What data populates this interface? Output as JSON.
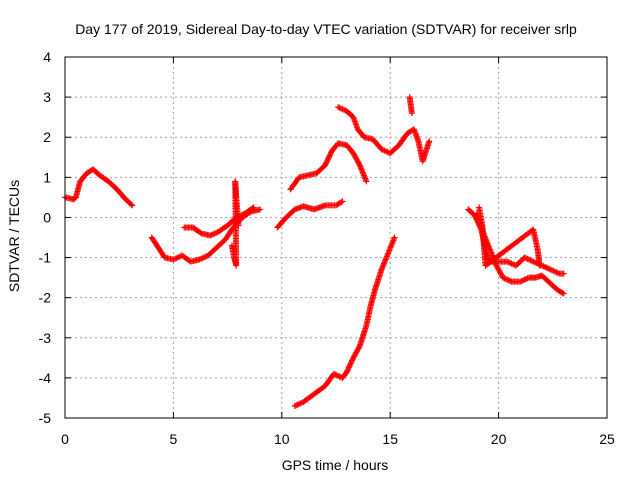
{
  "chart_data": {
    "type": "scatter",
    "title": "Day 177 of 2019, Sidereal Day-to-day VTEC variation (SDTVAR) for receiver srlp",
    "xlabel": "GPS time / hours",
    "ylabel": "SDTVAR / TECUs",
    "xlim": [
      0,
      25
    ],
    "ylim": [
      -5,
      4
    ],
    "x_ticks": [
      0,
      5,
      10,
      15,
      20,
      25
    ],
    "y_ticks": [
      -5,
      -4,
      -3,
      -2,
      -1,
      0,
      1,
      2,
      3,
      4
    ],
    "x_tick_labels": [
      "0",
      "5",
      "10",
      "15",
      "20",
      "25"
    ],
    "y_tick_labels": [
      "-5",
      "-4",
      "-3",
      "-2",
      "-1",
      "0",
      "1",
      "2",
      "3",
      "4"
    ],
    "grid": true,
    "marker": "plus",
    "color": "#ff0000",
    "segments": [
      [
        [
          0.0,
          0.5
        ],
        [
          0.2,
          0.48
        ],
        [
          0.4,
          0.45
        ],
        [
          0.5,
          0.5
        ],
        [
          0.7,
          0.9
        ],
        [
          1.0,
          1.1
        ],
        [
          1.3,
          1.2
        ],
        [
          1.6,
          1.05
        ],
        [
          2.0,
          0.9
        ],
        [
          2.4,
          0.7
        ],
        [
          2.8,
          0.45
        ],
        [
          3.1,
          0.3
        ]
      ],
      [
        [
          4.0,
          -0.5
        ],
        [
          4.3,
          -0.75
        ],
        [
          4.6,
          -1.0
        ],
        [
          5.0,
          -1.05
        ],
        [
          5.4,
          -0.95
        ],
        [
          5.8,
          -1.1
        ],
        [
          6.2,
          -1.05
        ],
        [
          6.6,
          -0.95
        ],
        [
          7.0,
          -0.75
        ],
        [
          7.4,
          -0.55
        ],
        [
          7.7,
          -0.3
        ],
        [
          8.0,
          -0.1
        ],
        [
          8.3,
          0.05
        ],
        [
          8.6,
          0.15
        ],
        [
          9.0,
          0.2
        ]
      ],
      [
        [
          5.5,
          -0.25
        ],
        [
          5.9,
          -0.25
        ],
        [
          6.3,
          -0.4
        ],
        [
          6.7,
          -0.45
        ],
        [
          7.1,
          -0.35
        ],
        [
          7.5,
          -0.2
        ],
        [
          7.9,
          0.0
        ],
        [
          8.3,
          0.1
        ],
        [
          8.7,
          0.25
        ]
      ],
      [
        [
          7.7,
          -0.7
        ],
        [
          7.8,
          -1.0
        ],
        [
          7.9,
          -1.2
        ],
        [
          7.85,
          0.9
        ],
        [
          7.9,
          0.5
        ],
        [
          8.0,
          -0.2
        ]
      ],
      [
        [
          9.8,
          -0.25
        ],
        [
          10.2,
          0.0
        ],
        [
          10.6,
          0.2
        ],
        [
          11.0,
          0.28
        ],
        [
          11.5,
          0.2
        ],
        [
          12.0,
          0.3
        ],
        [
          12.5,
          0.3
        ],
        [
          12.8,
          0.4
        ]
      ],
      [
        [
          10.4,
          0.7
        ],
        [
          10.8,
          1.0
        ],
        [
          11.2,
          1.05
        ],
        [
          11.6,
          1.1
        ],
        [
          12.0,
          1.3
        ],
        [
          12.3,
          1.65
        ],
        [
          12.6,
          1.85
        ],
        [
          13.0,
          1.8
        ],
        [
          13.3,
          1.6
        ],
        [
          13.6,
          1.3
        ],
        [
          13.9,
          0.9
        ]
      ],
      [
        [
          12.6,
          2.75
        ],
        [
          13.0,
          2.65
        ],
        [
          13.3,
          2.5
        ],
        [
          13.5,
          2.2
        ],
        [
          13.8,
          2.0
        ],
        [
          14.2,
          1.95
        ],
        [
          14.6,
          1.7
        ],
        [
          15.0,
          1.6
        ],
        [
          15.4,
          1.8
        ],
        [
          15.8,
          2.1
        ],
        [
          16.1,
          2.2
        ],
        [
          16.3,
          1.9
        ],
        [
          16.5,
          1.4
        ],
        [
          16.8,
          1.9
        ]
      ],
      [
        [
          10.6,
          -4.7
        ],
        [
          11.0,
          -4.6
        ],
        [
          11.5,
          -4.4
        ],
        [
          12.0,
          -4.2
        ],
        [
          12.4,
          -3.9
        ],
        [
          12.8,
          -4.0
        ],
        [
          13.0,
          -3.85
        ],
        [
          13.3,
          -3.5
        ],
        [
          13.6,
          -3.2
        ],
        [
          13.9,
          -2.7
        ],
        [
          14.1,
          -2.2
        ],
        [
          14.3,
          -1.8
        ],
        [
          14.6,
          -1.3
        ],
        [
          14.9,
          -0.9
        ],
        [
          15.2,
          -0.5
        ]
      ],
      [
        [
          15.9,
          3.0
        ],
        [
          16.0,
          2.6
        ]
      ],
      [
        [
          18.6,
          0.2
        ],
        [
          18.9,
          0.05
        ],
        [
          19.2,
          -0.3
        ],
        [
          19.4,
          -0.8
        ],
        [
          19.6,
          -1.1
        ],
        [
          20.0,
          -1.1
        ],
        [
          20.4,
          -1.1
        ],
        [
          20.8,
          -1.2
        ],
        [
          21.2,
          -1.0
        ],
        [
          21.6,
          -1.1
        ],
        [
          22.0,
          -1.2
        ],
        [
          22.4,
          -1.3
        ],
        [
          22.8,
          -1.4
        ],
        [
          23.0,
          -1.4
        ]
      ],
      [
        [
          19.0,
          0.1
        ],
        [
          19.3,
          -0.4
        ],
        [
          19.6,
          -0.8
        ],
        [
          19.9,
          -1.2
        ],
        [
          20.2,
          -1.5
        ],
        [
          20.6,
          -1.6
        ],
        [
          21.0,
          -1.6
        ],
        [
          21.4,
          -1.5
        ],
        [
          21.7,
          -1.5
        ],
        [
          22.0,
          -1.45
        ],
        [
          22.3,
          -1.6
        ],
        [
          22.7,
          -1.8
        ],
        [
          23.0,
          -1.9
        ]
      ],
      [
        [
          19.1,
          0.25
        ],
        [
          19.25,
          -0.2
        ],
        [
          19.4,
          -1.2
        ],
        [
          21.6,
          -0.3
        ],
        [
          21.8,
          -0.8
        ],
        [
          21.9,
          -1.2
        ]
      ]
    ]
  }
}
